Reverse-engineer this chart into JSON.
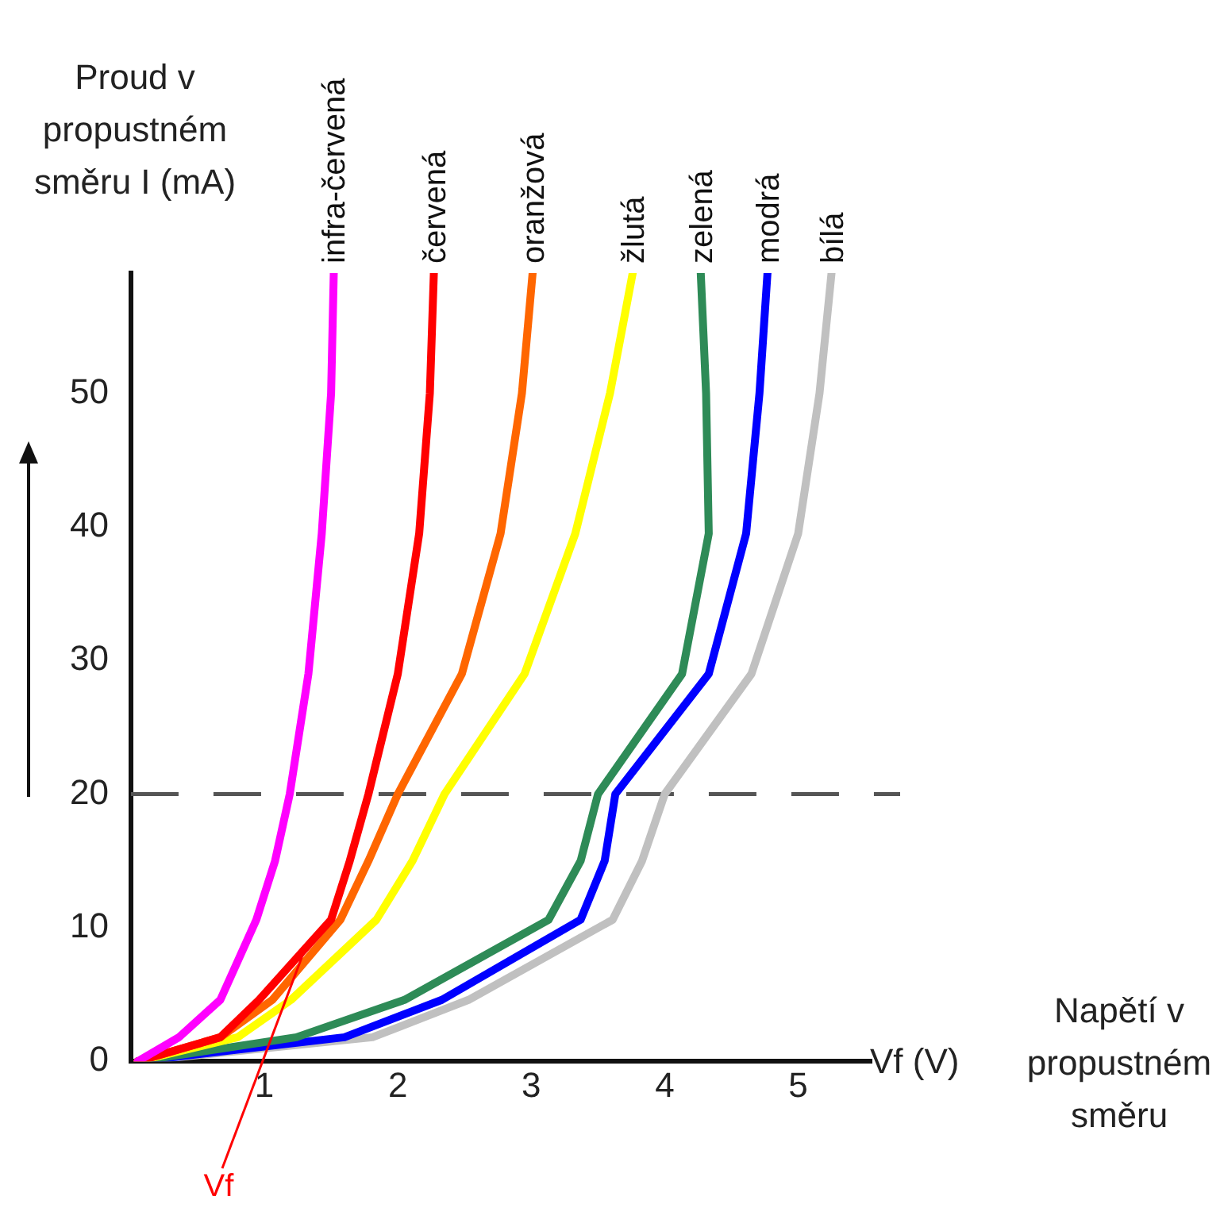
{
  "chart_data": {
    "type": "line",
    "ylabel": "Proud v propustném směru I (mA)",
    "xlabel": "Vf (V)",
    "annotations": [
      "Napětí v propustném směru",
      {
        "text": "Vf",
        "x": 1.3,
        "y": 8.4
      }
    ],
    "xlim": [
      0,
      5.55
    ],
    "xticks": [
      1,
      2,
      3,
      4,
      5
    ],
    "ylim": [
      0,
      59
    ],
    "yticks": [
      0,
      10,
      20,
      30,
      40,
      50
    ],
    "grid": false,
    "legend": false,
    "marker": "none",
    "line_style": "solid",
    "ref_lines": [
      {
        "axis": "y",
        "value": 20,
        "label": null,
        "color": "#555555",
        "line_style": "dashed"
      }
    ],
    "series": [
      {
        "name": "infra-červená",
        "color": "#ff00ff",
        "x": [
          0.05,
          0.36,
          0.67,
          0.94,
          1.08,
          1.19,
          1.33,
          1.43,
          1.5,
          1.52
        ],
        "values": [
          0,
          1.8,
          4.6,
          10.6,
          15,
          20,
          29,
          39.5,
          50,
          59
        ]
      },
      {
        "name": "červená",
        "color": "#ff0000",
        "x": [
          0.05,
          0.67,
          0.96,
          1.5,
          1.64,
          1.78,
          2.0,
          2.16,
          2.24,
          2.27
        ],
        "values": [
          0,
          1.8,
          4.6,
          10.6,
          15,
          20,
          29,
          39.5,
          50,
          59
        ]
      },
      {
        "name": "oranžová",
        "color": "#ff6600",
        "x": [
          0.05,
          0.67,
          1.06,
          1.57,
          1.78,
          2.0,
          2.48,
          2.77,
          2.93,
          3.01
        ],
        "values": [
          0,
          1.8,
          4.6,
          10.6,
          15,
          20,
          29,
          39.5,
          50,
          59
        ]
      },
      {
        "name": "žlutá",
        "color": "#ffff00",
        "x": [
          0.05,
          0.8,
          1.2,
          1.84,
          2.11,
          2.35,
          2.95,
          3.33,
          3.59,
          3.76
        ],
        "values": [
          0,
          1.8,
          4.6,
          10.6,
          15,
          20,
          29,
          39.5,
          50,
          59
        ]
      },
      {
        "name": "zelená",
        "color": "#2e8b57",
        "x": [
          0.05,
          1.24,
          2.05,
          3.13,
          3.37,
          3.5,
          4.13,
          4.33,
          4.31,
          4.27
        ],
        "values": [
          0,
          1.8,
          4.6,
          10.6,
          15,
          20,
          29,
          39.5,
          50,
          59
        ]
      },
      {
        "name": "modrá",
        "color": "#0000ff",
        "x": [
          0.05,
          1.6,
          2.33,
          3.37,
          3.55,
          3.63,
          4.33,
          4.61,
          4.71,
          4.77
        ],
        "values": [
          0,
          1.8,
          4.6,
          10.6,
          15,
          20,
          29,
          39.5,
          50,
          59
        ]
      },
      {
        "name": "bílá",
        "color": "#c0c0c0",
        "x": [
          0.05,
          1.81,
          2.53,
          3.61,
          3.83,
          4.0,
          4.65,
          5.0,
          5.16,
          5.25
        ],
        "values": [
          0,
          1.8,
          4.6,
          10.6,
          15,
          20,
          29,
          39.5,
          50,
          59
        ]
      }
    ]
  }
}
